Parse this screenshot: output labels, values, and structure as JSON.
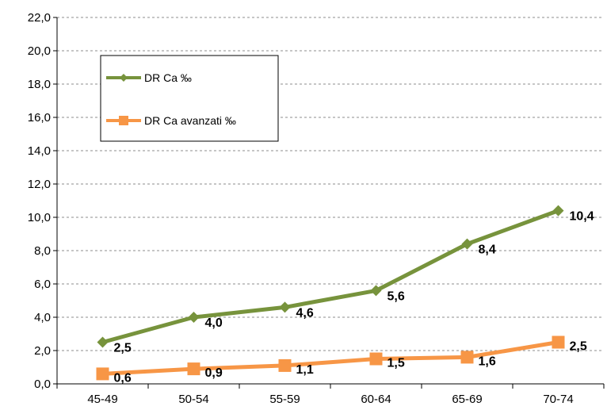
{
  "chart_data": {
    "type": "line",
    "categories": [
      "45-49",
      "50-54",
      "55-59",
      "60-64",
      "65-69",
      "70-74"
    ],
    "ylim": [
      0,
      22
    ],
    "yticks": [
      "0,0",
      "2,0",
      "4,0",
      "6,0",
      "8,0",
      "10,0",
      "12,0",
      "14,0",
      "16,0",
      "18,0",
      "20,0",
      "22,0"
    ],
    "grid": true,
    "legend_position": "top-left",
    "series": [
      {
        "name": "DR Ca ‰",
        "values": [
          2.5,
          4.0,
          4.6,
          5.6,
          8.4,
          10.4
        ],
        "labels": [
          "2,5",
          "4,0",
          "4,6",
          "5,6",
          "8,4",
          "10,4"
        ],
        "color": "#77933c",
        "marker": "diamond"
      },
      {
        "name": "DR Ca avanzati  ‰",
        "values": [
          0.6,
          0.9,
          1.1,
          1.5,
          1.6,
          2.5
        ],
        "labels": [
          "0,6",
          "0,9",
          "1,1",
          "1,5",
          "1,6",
          "2,5"
        ],
        "color": "#f79646",
        "marker": "square"
      }
    ]
  }
}
